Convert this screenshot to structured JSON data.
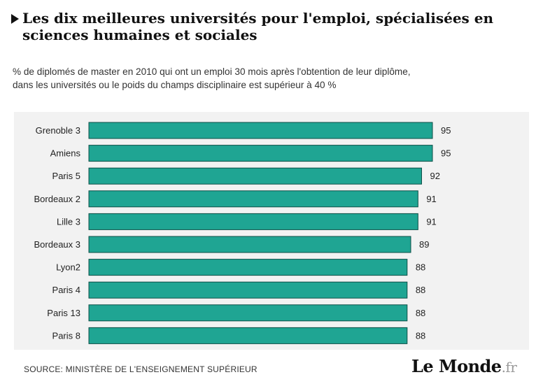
{
  "header": {
    "title": "Les dix meilleures universités pour l'emploi, spécialisées en sciences humaines et sociales",
    "subtitle_line1": "% de diplomés de master en 2010 qui ont un emploi 30 mois après l'obtention de leur diplôme,",
    "subtitle_line2": "dans les universités ou le poids du champs disciplinaire est supérieur à 40 %"
  },
  "footer": {
    "source": "SOURCE: MINISTÈRE DE L'ENSEIGNEMENT SUPÉRIEUR",
    "logo_main": "Le Monde",
    "logo_tld": ".fr"
  },
  "chart_data": {
    "type": "bar",
    "orientation": "horizontal",
    "categories": [
      "Grenoble 3",
      "Amiens",
      "Paris 5",
      "Bordeaux 2",
      "Lille 3",
      "Bordeaux 3",
      "Lyon2",
      "Paris 4",
      "Paris 13",
      "Paris 8"
    ],
    "values": [
      95,
      95,
      92,
      91,
      91,
      89,
      88,
      88,
      88,
      88
    ],
    "xlim": [
      0,
      95
    ],
    "grid": false,
    "legend": "none",
    "bar_color": "#1fa593",
    "bar_border_color": "#0d4f47",
    "panel_color": "#f2f2f2"
  }
}
